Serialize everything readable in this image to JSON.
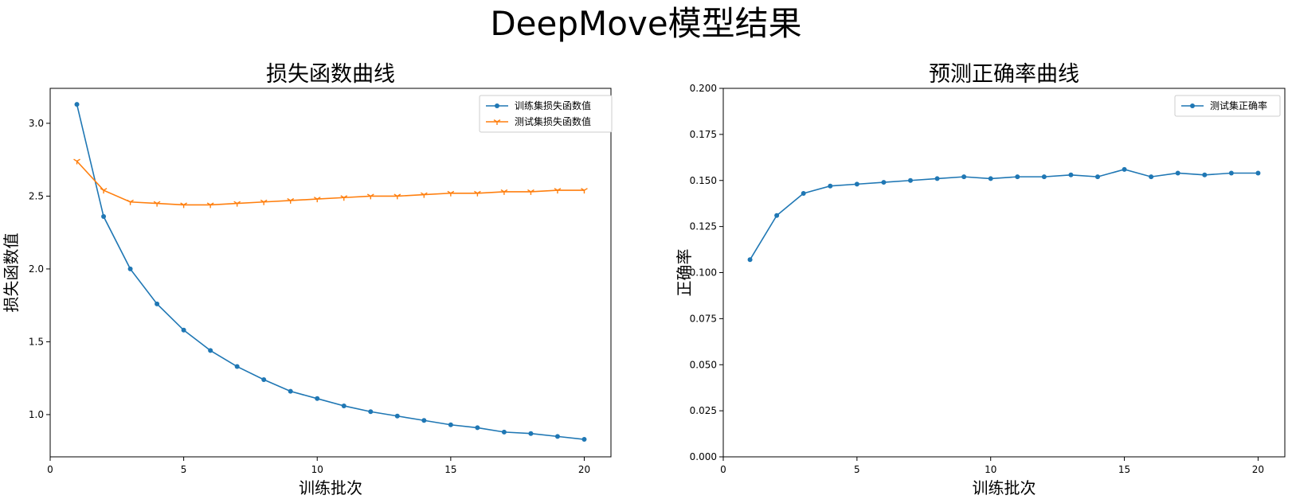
{
  "figure": {
    "title": "DeepMove模型结果"
  },
  "chart_data": [
    {
      "type": "line",
      "title": "损失函数曲线",
      "xlabel": "训练批次",
      "ylabel": "损失函数值",
      "xlim": [
        0,
        21
      ],
      "ylim": [
        0.71,
        3.24
      ],
      "xticks": [
        0,
        5,
        10,
        15,
        20
      ],
      "yticks": [
        1.0,
        1.5,
        2.0,
        2.5,
        3.0
      ],
      "ytick_decimals": 1,
      "grid": false,
      "legend": "top-right",
      "x": [
        1,
        2,
        3,
        4,
        5,
        6,
        7,
        8,
        9,
        10,
        11,
        12,
        13,
        14,
        15,
        16,
        17,
        18,
        19,
        20
      ],
      "series": [
        {
          "name": "训练集损失函数值",
          "color": "#1f77b4",
          "marker": "dot",
          "values": [
            3.13,
            2.36,
            2.0,
            1.76,
            1.58,
            1.44,
            1.33,
            1.24,
            1.16,
            1.11,
            1.06,
            1.02,
            0.99,
            0.96,
            0.93,
            0.91,
            0.88,
            0.87,
            0.85,
            0.83
          ]
        },
        {
          "name": "测试集损失函数值",
          "color": "#ff7f0e",
          "marker": "tri",
          "values": [
            2.74,
            2.54,
            2.46,
            2.45,
            2.44,
            2.44,
            2.45,
            2.46,
            2.47,
            2.48,
            2.49,
            2.5,
            2.5,
            2.51,
            2.52,
            2.52,
            2.53,
            2.53,
            2.54,
            2.54
          ]
        }
      ]
    },
    {
      "type": "line",
      "title": "预测正确率曲线",
      "xlabel": "训练批次",
      "ylabel": "正确率",
      "xlim": [
        0,
        21
      ],
      "ylim": [
        0,
        0.2
      ],
      "xticks": [
        0,
        5,
        10,
        15,
        20
      ],
      "yticks": [
        0,
        0.025,
        0.05,
        0.075,
        0.1,
        0.125,
        0.15,
        0.175,
        0.2
      ],
      "ytick_decimals": 3,
      "grid": false,
      "legend": "top-right",
      "x": [
        1,
        2,
        3,
        4,
        5,
        6,
        7,
        8,
        9,
        10,
        11,
        12,
        13,
        14,
        15,
        16,
        17,
        18,
        19,
        20
      ],
      "series": [
        {
          "name": "测试集正确率",
          "color": "#1f77b4",
          "marker": "dot",
          "values": [
            0.107,
            0.131,
            0.143,
            0.147,
            0.148,
            0.149,
            0.15,
            0.151,
            0.152,
            0.151,
            0.152,
            0.152,
            0.153,
            0.152,
            0.156,
            0.152,
            0.154,
            0.153,
            0.154,
            0.154
          ]
        }
      ]
    }
  ]
}
